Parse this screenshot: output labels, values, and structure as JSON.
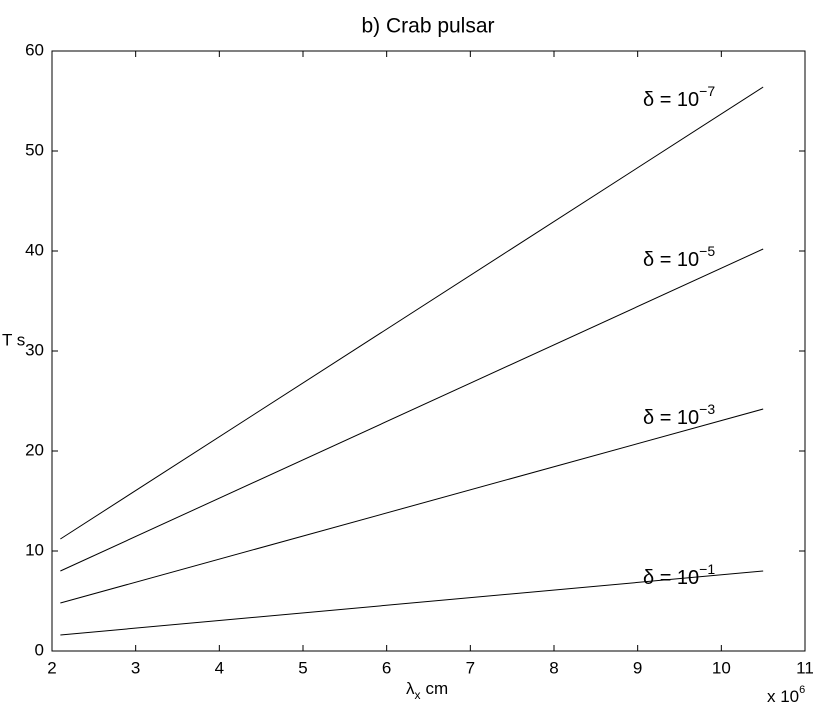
{
  "chart_data": {
    "type": "line",
    "title": "b) Crab pulsar",
    "xlabel": "λ",
    "xlabel_sub": "x",
    "xlabel_unit": "cm",
    "ylabel": "T s",
    "x_multiplier": "x 10",
    "x_multiplier_exp": "6",
    "x": [
      2.1,
      10.5
    ],
    "series": [
      {
        "label": "δ = 10",
        "label_exp": "−7",
        "color": "#000000",
        "values": [
          11.2,
          56.4
        ]
      },
      {
        "label": "δ = 10",
        "label_exp": "−5",
        "color": "#000000",
        "values": [
          8.0,
          40.2
        ]
      },
      {
        "label": "δ = 10",
        "label_exp": "−3",
        "color": "#000000",
        "values": [
          4.8,
          24.2
        ]
      },
      {
        "label": "δ = 10",
        "label_exp": "−1",
        "color": "#000000",
        "values": [
          1.6,
          8.0
        ]
      }
    ],
    "xlim": [
      2,
      11
    ],
    "xticks": [
      2,
      3,
      4,
      5,
      6,
      7,
      8,
      9,
      10,
      11
    ],
    "ylim": [
      0,
      60
    ],
    "yticks": [
      0,
      10,
      20,
      30,
      40,
      50,
      60
    ],
    "grid": false
  }
}
